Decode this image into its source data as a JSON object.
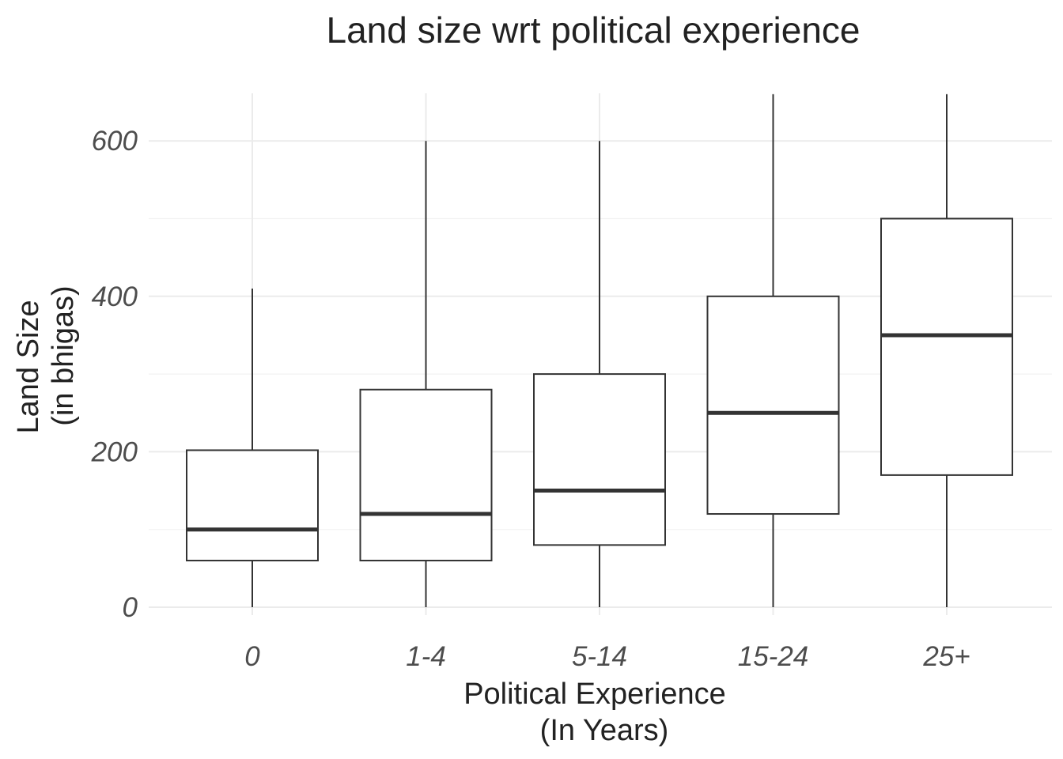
{
  "chart_data": {
    "type": "boxplot",
    "title": "Land size  wrt political experience",
    "xlabel": [
      "Political Experience",
      "(In Years)"
    ],
    "ylabel": [
      "Land Size",
      "(in bhigas)"
    ],
    "categories": [
      "0",
      "1-4",
      "5-14",
      "15-24",
      "25+"
    ],
    "boxes": [
      {
        "category": "0",
        "min": 0,
        "q1": 60,
        "median": 100,
        "q3": 202,
        "max": 410
      },
      {
        "category": "1-4",
        "min": 0,
        "q1": 60,
        "median": 120,
        "q3": 280,
        "max": 600
      },
      {
        "category": "5-14",
        "min": 0,
        "q1": 80,
        "median": 150,
        "q3": 300,
        "max": 600
      },
      {
        "category": "15-24",
        "min": 0,
        "q1": 120,
        "median": 250,
        "q3": 400,
        "max": 660
      },
      {
        "category": "25+",
        "min": 0,
        "q1": 170,
        "median": 350,
        "q3": 500,
        "max": 660
      }
    ],
    "y_ticks": [
      0,
      200,
      400,
      600
    ],
    "ylim": [
      -12,
      660
    ],
    "grid": true,
    "legend": "none"
  }
}
